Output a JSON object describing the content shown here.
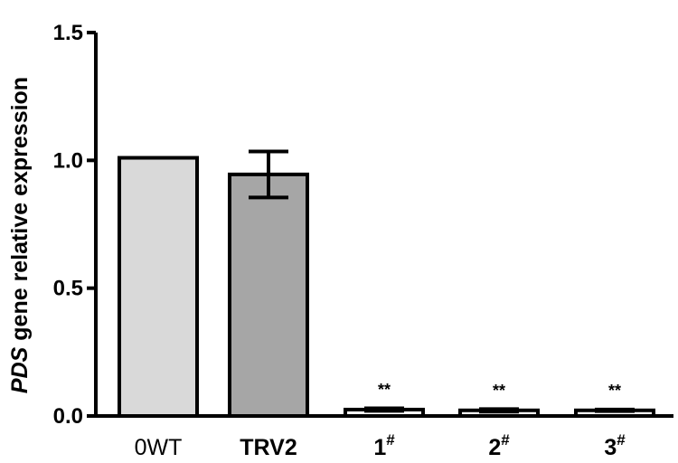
{
  "chart_data": {
    "type": "bar",
    "categories": [
      "0WT",
      "TRV2",
      "1",
      "2",
      "3"
    ],
    "category_superscripts": [
      "",
      "",
      "#",
      "#",
      "#"
    ],
    "values": [
      1.01,
      0.945,
      0.025,
      0.022,
      0.022
    ],
    "errors": [
      0.0,
      0.09,
      0.005,
      0.005,
      0.003
    ],
    "significance": [
      "",
      "",
      "**",
      "**",
      "**"
    ],
    "bar_colors": [
      "#d9d9d9",
      "#a6a6a6",
      "#ffffff",
      "#ffffff",
      "#ffffff"
    ],
    "ylabel_italic": "PDS",
    "ylabel_rest": " gene relative expression",
    "ylim": [
      0.0,
      1.5
    ],
    "yticks": [
      "0.0",
      "0.5",
      "1.0",
      "1.5"
    ],
    "ytick_values": [
      0.0,
      0.5,
      1.0,
      1.5
    ],
    "grid": false,
    "legend": "none"
  }
}
